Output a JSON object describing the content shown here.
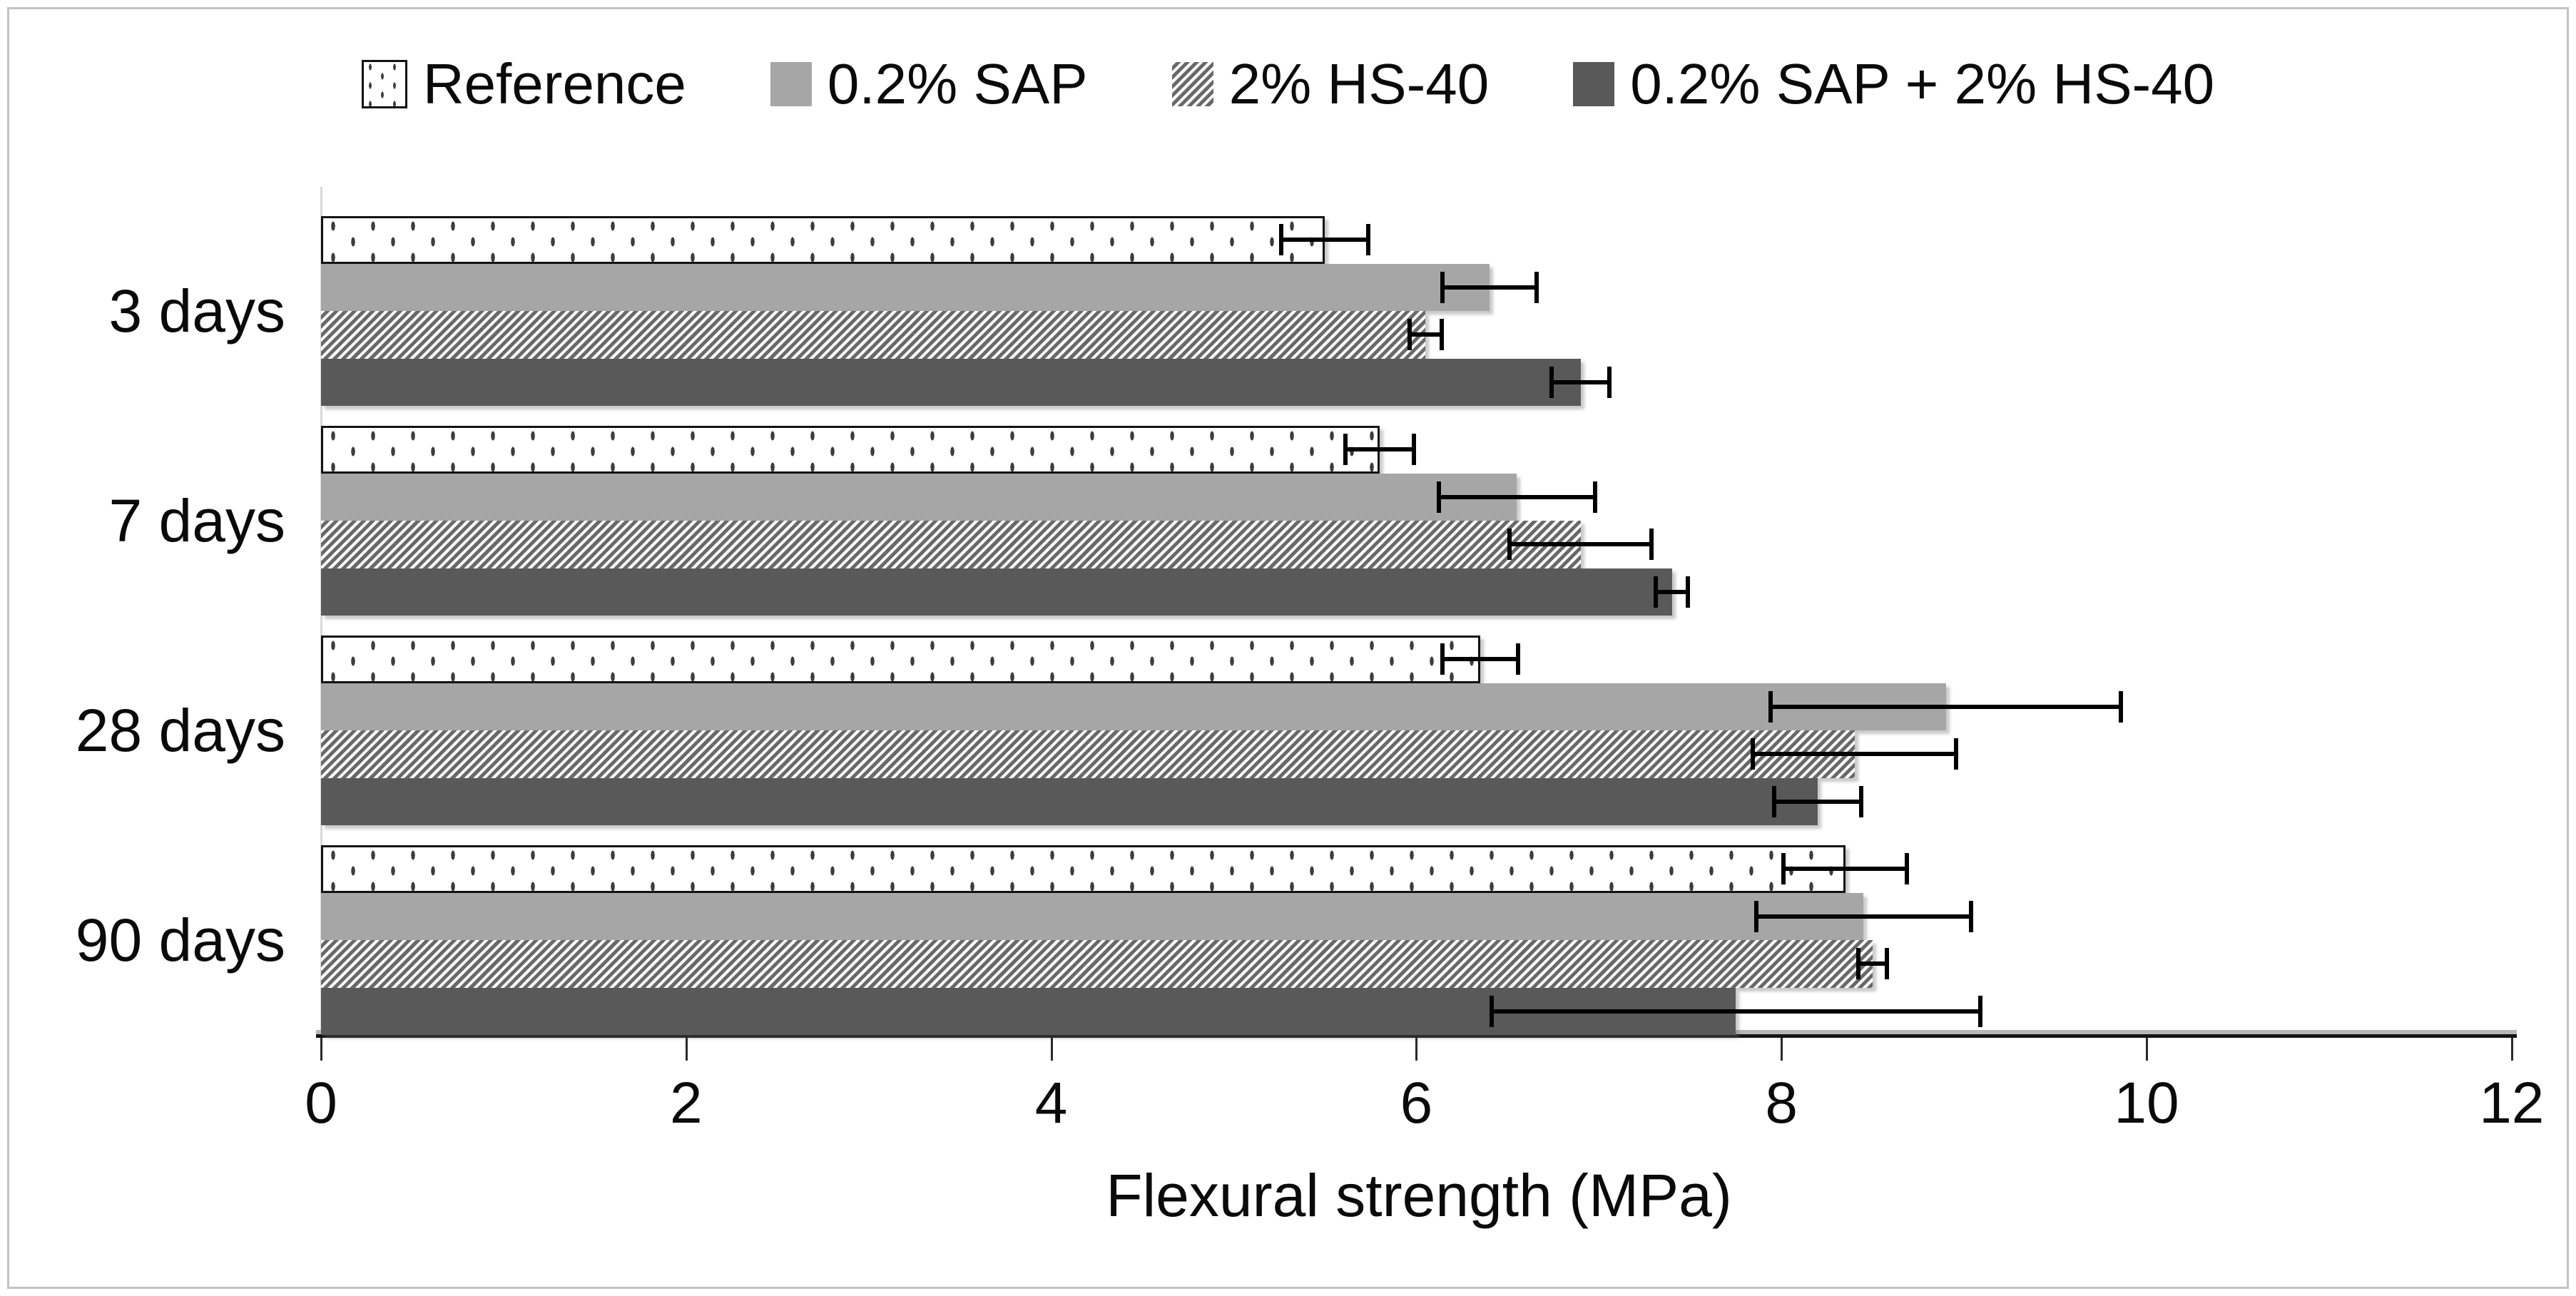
{
  "figure": {
    "background": "#ffffff",
    "border_color": "#c3c3c3"
  },
  "legend": {
    "items": [
      {
        "label": "Reference",
        "swatch_style": "dotted"
      },
      {
        "label": "0.2% SAP",
        "swatch_style": "solid-light"
      },
      {
        "label": "2% HS-40",
        "swatch_style": "hatched"
      },
      {
        "label": "0.2% SAP + 2% HS-40",
        "swatch_style": "solid-dark"
      }
    ]
  },
  "chart_data": {
    "type": "bar",
    "orientation": "horizontal",
    "title": "",
    "xlabel": "Flexural strength (MPa)",
    "ylabel": "",
    "xlim": [
      0,
      12
    ],
    "xticks": [
      0,
      2,
      4,
      6,
      8,
      10,
      12
    ],
    "grid": false,
    "legend_position": "top",
    "categories": [
      "3 days",
      "7 days",
      "28 days",
      "90 days"
    ],
    "series": [
      {
        "name": "Reference",
        "style": "dotted",
        "fill": "#ffffff",
        "pattern_color": "#3d3d3d",
        "values": [
          5.5,
          5.8,
          6.35,
          8.35
        ],
        "errors": [
          0.25,
          0.2,
          0.22,
          0.35
        ]
      },
      {
        "name": "0.2% SAP",
        "style": "solid-light",
        "fill": "#a6a6a6",
        "values": [
          6.4,
          6.55,
          8.9,
          8.45
        ],
        "errors": [
          0.27,
          0.44,
          0.97,
          0.6
        ]
      },
      {
        "name": "2% HS-40",
        "style": "hatched",
        "fill": "#696969",
        "values": [
          6.05,
          6.9,
          8.4,
          8.5
        ],
        "errors": [
          0.1,
          0.4,
          0.57,
          0.09
        ]
      },
      {
        "name": "0.2% SAP + 2% HS-40",
        "style": "solid-dark",
        "fill": "#595959",
        "values": [
          6.9,
          7.4,
          8.2,
          7.75
        ],
        "errors": [
          0.17,
          0.1,
          0.25,
          1.35
        ]
      }
    ],
    "error_bar_color": "#000000",
    "axis_color": "#141414"
  }
}
